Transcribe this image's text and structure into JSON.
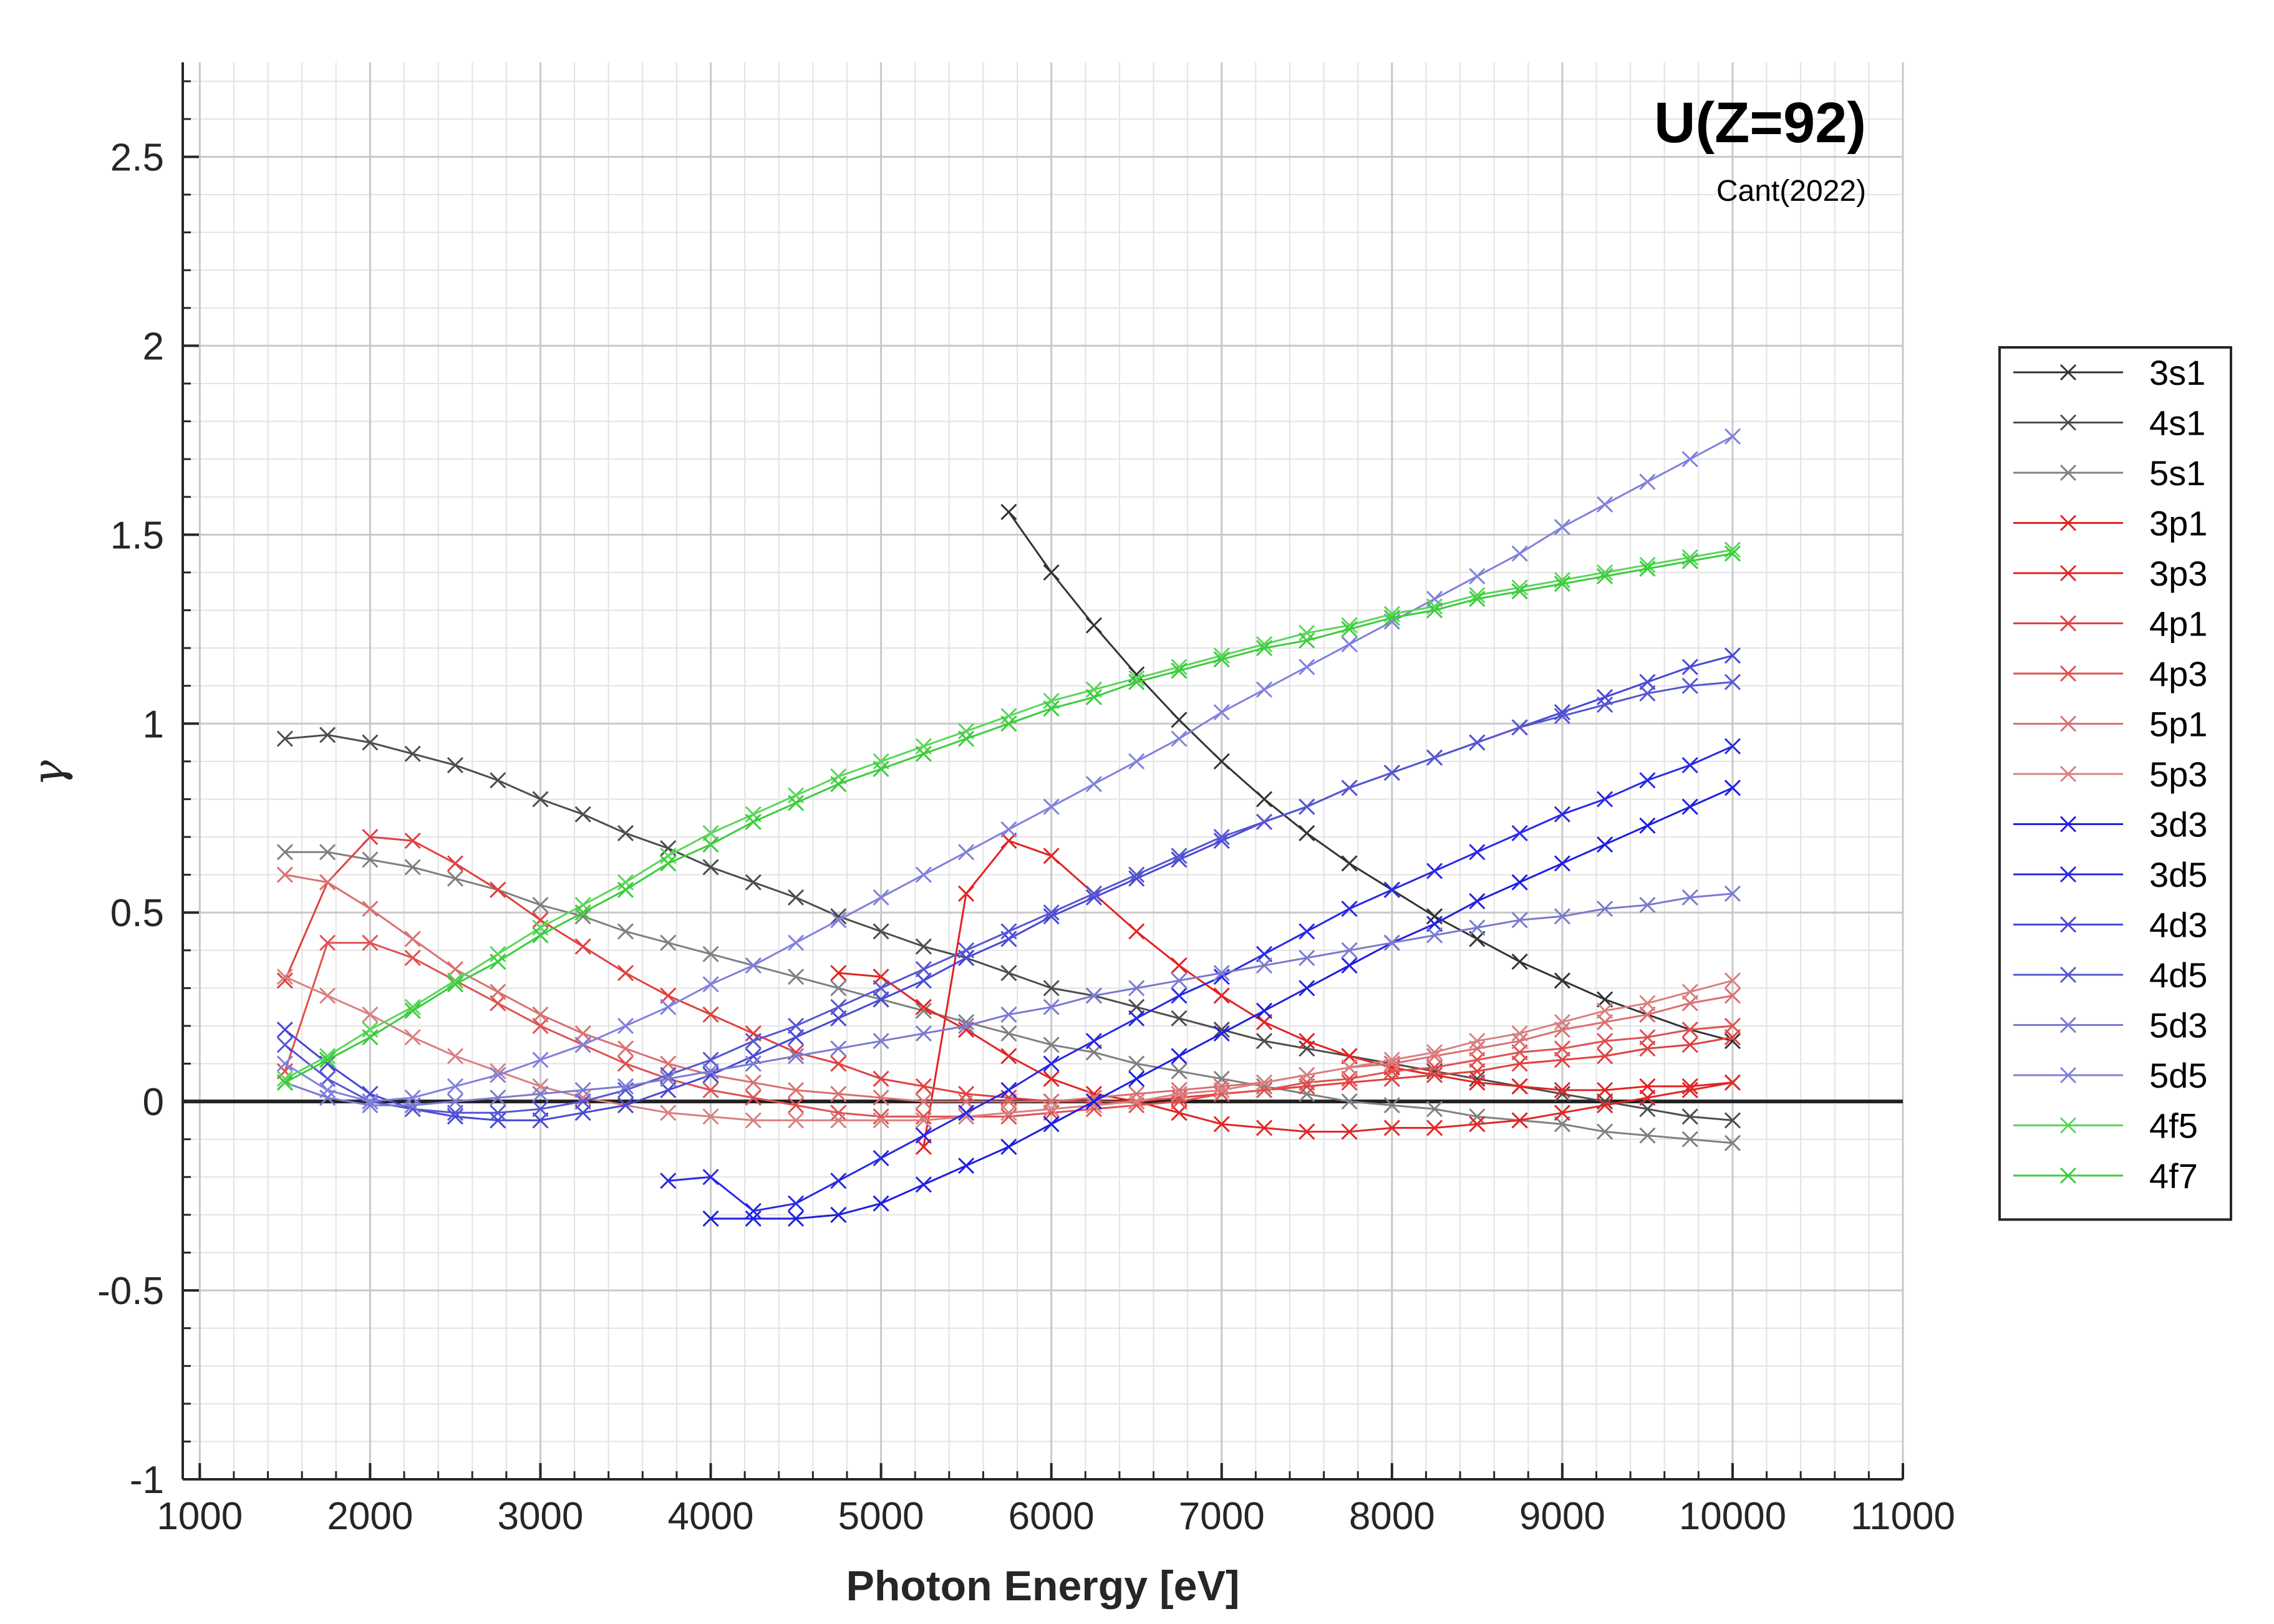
{
  "chart_data": {
    "type": "line",
    "title": "U(Z=92)",
    "subtitle": "Cant(2022)",
    "xlabel": "Photon Energy [eV]",
    "ylabel": "γ",
    "xlim": [
      900,
      11000
    ],
    "ylim": [
      -1,
      2.75
    ],
    "xticks": [
      1000,
      2000,
      3000,
      4000,
      5000,
      6000,
      7000,
      8000,
      9000,
      10000,
      11000
    ],
    "xtick_labels": [
      "1000",
      "2000",
      "3000",
      "4000",
      "5000",
      "6000",
      "7000",
      "8000",
      "9000",
      "10000",
      "11000"
    ],
    "yticks": [
      -1,
      -0.5,
      0,
      0.5,
      1,
      1.5,
      2,
      2.5
    ],
    "ytick_labels": [
      "-1",
      "-0.5",
      "0",
      "0.5",
      "1",
      "1.5",
      "2",
      "2.5"
    ],
    "grid": true,
    "minor_grid": true,
    "zero_line": true,
    "legend_position": "outside-right",
    "marker": "x",
    "series": [
      {
        "name": "3s1",
        "color": "#333333",
        "x": [
          5750,
          6000,
          6250,
          6500,
          6750,
          7000,
          7250,
          7500,
          7750,
          8000,
          8250,
          8500,
          8750,
          9000,
          9250,
          9500,
          9750,
          10000
        ],
        "y": [
          1.56,
          1.4,
          1.26,
          1.13,
          1.01,
          0.9,
          0.8,
          0.71,
          0.63,
          0.56,
          0.49,
          0.43,
          0.37,
          0.32,
          0.27,
          0.23,
          0.19,
          0.16
        ]
      },
      {
        "name": "4s1",
        "color": "#4d4d4d",
        "x": [
          1500,
          1750,
          2000,
          2250,
          2500,
          2750,
          3000,
          3250,
          3500,
          3750,
          4000,
          4250,
          4500,
          4750,
          5000,
          5250,
          5500,
          5750,
          6000,
          6250,
          6500,
          6750,
          7000,
          7250,
          7500,
          7750,
          8000,
          8250,
          8500,
          8750,
          9000,
          9250,
          9500,
          9750,
          10000
        ],
        "y": [
          0.96,
          0.97,
          0.95,
          0.92,
          0.89,
          0.85,
          0.8,
          0.76,
          0.71,
          0.67,
          0.62,
          0.58,
          0.54,
          0.49,
          0.45,
          0.41,
          0.38,
          0.34,
          0.3,
          0.28,
          0.25,
          0.22,
          0.19,
          0.16,
          0.14,
          0.12,
          0.1,
          0.08,
          0.06,
          0.04,
          0.02,
          0.0,
          -0.02,
          -0.04,
          -0.05
        ]
      },
      {
        "name": "5s1",
        "color": "#808080",
        "x": [
          1500,
          1750,
          2000,
          2250,
          2500,
          2750,
          3000,
          3250,
          3500,
          3750,
          4000,
          4250,
          4500,
          4750,
          5000,
          5250,
          5500,
          5750,
          6000,
          6250,
          6500,
          6750,
          7000,
          7250,
          7500,
          7750,
          8000,
          8250,
          8500,
          8750,
          9000,
          9250,
          9500,
          9750,
          10000
        ],
        "y": [
          0.66,
          0.66,
          0.64,
          0.62,
          0.59,
          0.56,
          0.52,
          0.49,
          0.45,
          0.42,
          0.39,
          0.36,
          0.33,
          0.3,
          0.27,
          0.24,
          0.21,
          0.18,
          0.15,
          0.13,
          0.1,
          0.08,
          0.06,
          0.04,
          0.02,
          0.0,
          -0.01,
          -0.02,
          -0.04,
          -0.05,
          -0.06,
          -0.08,
          -0.09,
          -0.1,
          -0.11
        ]
      },
      {
        "name": "3p1",
        "color": "#e32222",
        "x": [
          5250,
          5500,
          5750,
          6000,
          6250,
          6500,
          6750,
          7000,
          7250,
          7500,
          7750,
          8000,
          8250,
          8500,
          8750,
          9000,
          9250,
          9500,
          9750,
          10000
        ],
        "y": [
          -0.12,
          0.55,
          0.69,
          0.65,
          0.55,
          0.45,
          0.36,
          0.28,
          0.21,
          0.16,
          0.12,
          0.09,
          0.07,
          0.05,
          0.04,
          0.03,
          0.03,
          0.04,
          0.04,
          0.05
        ]
      },
      {
        "name": "3p3",
        "color": "#e02626",
        "x": [
          4750,
          5000,
          5250,
          5500,
          5750,
          6000,
          6250,
          6500,
          6750,
          7000,
          7250,
          7500,
          7750,
          8000,
          8250,
          8500,
          8750,
          9000,
          9250,
          9500,
          9750,
          10000
        ],
        "y": [
          0.34,
          0.33,
          0.25,
          0.19,
          0.12,
          0.06,
          0.02,
          0.0,
          -0.03,
          -0.06,
          -0.07,
          -0.08,
          -0.08,
          -0.07,
          -0.07,
          -0.06,
          -0.05,
          -0.03,
          -0.01,
          0.01,
          0.03,
          0.05
        ]
      },
      {
        "name": "4p1",
        "color": "#e04040",
        "x": [
          1500,
          1750,
          2000,
          2250,
          2500,
          2750,
          3000,
          3250,
          3500,
          3750,
          4000,
          4250,
          4500,
          4750,
          5000,
          5250,
          5500,
          5750,
          6000,
          6250,
          6500,
          6750,
          7000,
          7250,
          7500,
          7750,
          8000,
          8250,
          8500,
          8750,
          9000,
          9250,
          9500,
          9750,
          10000
        ],
        "y": [
          0.32,
          0.58,
          0.7,
          0.69,
          0.63,
          0.56,
          0.48,
          0.41,
          0.34,
          0.28,
          0.23,
          0.18,
          0.13,
          0.1,
          0.06,
          0.04,
          0.02,
          0.01,
          0.0,
          0.0,
          0.0,
          0.01,
          0.02,
          0.03,
          0.04,
          0.05,
          0.06,
          0.07,
          0.08,
          0.1,
          0.11,
          0.12,
          0.14,
          0.15,
          0.17
        ]
      },
      {
        "name": "4p3",
        "color": "#e05050",
        "x": [
          1500,
          1750,
          2000,
          2250,
          2500,
          2750,
          3000,
          3250,
          3500,
          3750,
          4000,
          4250,
          4500,
          4750,
          5000,
          5250,
          5500,
          5750,
          6000,
          6250,
          6500,
          6750,
          7000,
          7250,
          7500,
          7750,
          8000,
          8250,
          8500,
          8750,
          9000,
          9250,
          9500,
          9750,
          10000
        ],
        "y": [
          0.08,
          0.42,
          0.42,
          0.38,
          0.32,
          0.26,
          0.2,
          0.15,
          0.1,
          0.06,
          0.03,
          0.01,
          -0.01,
          -0.03,
          -0.04,
          -0.04,
          -0.04,
          -0.04,
          -0.03,
          -0.02,
          -0.01,
          0.0,
          0.02,
          0.03,
          0.05,
          0.06,
          0.08,
          0.09,
          0.11,
          0.13,
          0.14,
          0.16,
          0.17,
          0.19,
          0.2
        ]
      },
      {
        "name": "5p1",
        "color": "#d97070",
        "x": [
          1500,
          1750,
          2000,
          2250,
          2500,
          2750,
          3000,
          3250,
          3500,
          3750,
          4000,
          4250,
          4500,
          4750,
          5000,
          5250,
          5500,
          5750,
          6000,
          6250,
          6500,
          6750,
          7000,
          7250,
          7500,
          7750,
          8000,
          8250,
          8500,
          8750,
          9000,
          9250,
          9500,
          9750,
          10000
        ],
        "y": [
          0.6,
          0.58,
          0.51,
          0.43,
          0.35,
          0.29,
          0.23,
          0.18,
          0.14,
          0.1,
          0.07,
          0.05,
          0.03,
          0.02,
          0.01,
          0.0,
          0.0,
          0.0,
          0.0,
          0.01,
          0.02,
          0.03,
          0.04,
          0.05,
          0.07,
          0.09,
          0.1,
          0.12,
          0.14,
          0.16,
          0.19,
          0.21,
          0.23,
          0.26,
          0.28
        ]
      },
      {
        "name": "5p3",
        "color": "#d98080",
        "x": [
          1500,
          1750,
          2000,
          2250,
          2500,
          2750,
          3000,
          3250,
          3500,
          3750,
          4000,
          4250,
          4500,
          4750,
          5000,
          5250,
          5500,
          5750,
          6000,
          6250,
          6500,
          6750,
          7000,
          7250,
          7500,
          7750,
          8000,
          8250,
          8500,
          8750,
          9000,
          9250,
          9500,
          9750,
          10000
        ],
        "y": [
          0.33,
          0.28,
          0.23,
          0.17,
          0.12,
          0.08,
          0.04,
          0.01,
          -0.01,
          -0.03,
          -0.04,
          -0.05,
          -0.05,
          -0.05,
          -0.05,
          -0.05,
          -0.04,
          -0.03,
          -0.02,
          -0.01,
          0.0,
          0.02,
          0.03,
          0.05,
          0.07,
          0.09,
          0.11,
          0.13,
          0.16,
          0.18,
          0.21,
          0.24,
          0.26,
          0.29,
          0.32
        ]
      },
      {
        "name": "3d3",
        "color": "#1f1fe0",
        "x": [
          4000,
          4250,
          4500,
          4750,
          5000,
          5250,
          5500,
          5750,
          6000,
          6250,
          6500,
          6750,
          7000,
          7250,
          7500,
          7750,
          8000,
          8250,
          8500,
          8750,
          9000,
          9250,
          9500,
          9750,
          10000
        ],
        "y": [
          -0.31,
          -0.31,
          -0.31,
          -0.3,
          -0.27,
          -0.22,
          -0.17,
          -0.12,
          -0.06,
          0.0,
          0.06,
          0.12,
          0.18,
          0.24,
          0.3,
          0.36,
          0.42,
          0.47,
          0.53,
          0.58,
          0.63,
          0.68,
          0.73,
          0.78,
          0.83
        ]
      },
      {
        "name": "3d5",
        "color": "#2828e6",
        "x": [
          3750,
          4000,
          4250,
          4500,
          4750,
          5000,
          5250,
          5500,
          5750,
          6000,
          6250,
          6500,
          6750,
          7000,
          7250,
          7500,
          7750,
          8000,
          8250,
          8500,
          8750,
          9000,
          9250,
          9500,
          9750,
          10000
        ],
        "y": [
          -0.21,
          -0.2,
          -0.29,
          -0.27,
          -0.21,
          -0.15,
          -0.09,
          -0.03,
          0.03,
          0.1,
          0.16,
          0.22,
          0.28,
          0.33,
          0.39,
          0.45,
          0.51,
          0.56,
          0.61,
          0.66,
          0.71,
          0.76,
          0.8,
          0.85,
          0.89,
          0.94
        ]
      },
      {
        "name": "4d3",
        "color": "#4848d6",
        "x": [
          1500,
          1750,
          2000,
          2250,
          2500,
          2750,
          3000,
          3250,
          3500,
          3750,
          4000,
          4250,
          4500,
          4750,
          5000,
          5250,
          5500,
          5750,
          6000,
          6250,
          6500,
          6750,
          7000,
          7250,
          7500,
          7750,
          8000,
          8250,
          8500,
          8750,
          9000,
          9250,
          9500,
          9750,
          10000
        ],
        "y": [
          0.19,
          0.1,
          0.02,
          -0.02,
          -0.04,
          -0.05,
          -0.05,
          -0.03,
          -0.01,
          0.03,
          0.07,
          0.12,
          0.17,
          0.22,
          0.27,
          0.32,
          0.38,
          0.43,
          0.49,
          0.54,
          0.59,
          0.64,
          0.69,
          0.74,
          0.78,
          0.83,
          0.87,
          0.91,
          0.95,
          0.99,
          1.03,
          1.07,
          1.11,
          1.15,
          1.18
        ]
      },
      {
        "name": "4d5",
        "color": "#5656d0",
        "x": [
          1500,
          1750,
          2000,
          2250,
          2500,
          2750,
          3000,
          3250,
          3500,
          3750,
          4000,
          4250,
          4500,
          4750,
          5000,
          5250,
          5500,
          5750,
          6000,
          6250,
          6500,
          6750,
          7000,
          7250,
          7500,
          7750,
          8000,
          8250,
          8500,
          8750,
          9000,
          9250,
          9500,
          9750,
          10000
        ],
        "y": [
          0.15,
          0.06,
          0.0,
          -0.02,
          -0.03,
          -0.03,
          -0.02,
          0.0,
          0.03,
          0.07,
          0.11,
          0.16,
          0.2,
          0.25,
          0.3,
          0.35,
          0.4,
          0.45,
          0.5,
          0.55,
          0.6,
          0.65,
          0.7,
          0.74,
          0.78,
          0.83,
          0.87,
          0.91,
          0.95,
          0.99,
          1.02,
          1.05,
          1.08,
          1.1,
          1.11
        ]
      },
      {
        "name": "5d3",
        "color": "#7a7ad0",
        "x": [
          1500,
          1750,
          2000,
          2250,
          2500,
          2750,
          3000,
          3250,
          3500,
          3750,
          4000,
          4250,
          4500,
          4750,
          5000,
          5250,
          5500,
          5750,
          6000,
          6250,
          6500,
          6750,
          7000,
          7250,
          7500,
          7750,
          8000,
          8250,
          8500,
          8750,
          9000,
          9250,
          9500,
          9750,
          10000
        ],
        "y": [
          0.05,
          0.01,
          -0.01,
          -0.01,
          0.0,
          0.01,
          0.02,
          0.03,
          0.04,
          0.06,
          0.08,
          0.1,
          0.12,
          0.14,
          0.16,
          0.18,
          0.2,
          0.23,
          0.25,
          0.28,
          0.3,
          0.32,
          0.34,
          0.36,
          0.38,
          0.4,
          0.42,
          0.44,
          0.46,
          0.48,
          0.49,
          0.51,
          0.52,
          0.54,
          0.55
        ]
      },
      {
        "name": "5d5",
        "color": "#8080dc",
        "x": [
          1500,
          1750,
          2000,
          2250,
          2500,
          2750,
          3000,
          3250,
          3500,
          3750,
          4000,
          4250,
          4500,
          4750,
          5000,
          5250,
          5500,
          5750,
          6000,
          6250,
          6500,
          6750,
          7000,
          7250,
          7500,
          7750,
          8000,
          8250,
          8500,
          8750,
          9000,
          9250,
          9500,
          9750,
          10000
        ],
        "y": [
          0.1,
          0.03,
          0.0,
          0.01,
          0.04,
          0.07,
          0.11,
          0.15,
          0.2,
          0.25,
          0.31,
          0.36,
          0.42,
          0.48,
          0.54,
          0.6,
          0.66,
          0.72,
          0.78,
          0.84,
          0.9,
          0.96,
          1.03,
          1.09,
          1.15,
          1.21,
          1.27,
          1.33,
          1.39,
          1.45,
          1.52,
          1.58,
          1.64,
          1.7,
          1.76
        ]
      },
      {
        "name": "4f5",
        "color": "#5ad65a",
        "x": [
          1500,
          1750,
          2000,
          2250,
          2500,
          2750,
          3000,
          3250,
          3500,
          3750,
          4000,
          4250,
          4500,
          4750,
          5000,
          5250,
          5500,
          5750,
          6000,
          6250,
          6500,
          6750,
          7000,
          7250,
          7500,
          7750,
          8000,
          8250,
          8500,
          8750,
          9000,
          9250,
          9500,
          9750,
          10000
        ],
        "y": [
          0.06,
          0.12,
          0.19,
          0.25,
          0.32,
          0.39,
          0.46,
          0.52,
          0.58,
          0.65,
          0.71,
          0.76,
          0.81,
          0.86,
          0.9,
          0.94,
          0.98,
          1.02,
          1.06,
          1.09,
          1.12,
          1.15,
          1.18,
          1.21,
          1.24,
          1.26,
          1.29,
          1.31,
          1.34,
          1.36,
          1.38,
          1.4,
          1.42,
          1.44,
          1.46
        ]
      },
      {
        "name": "4f7",
        "color": "#3ccc3c",
        "x": [
          1500,
          1750,
          2000,
          2250,
          2500,
          2750,
          3000,
          3250,
          3500,
          3750,
          4000,
          4250,
          4500,
          4750,
          5000,
          5250,
          5500,
          5750,
          6000,
          6250,
          6500,
          6750,
          7000,
          7250,
          7500,
          7750,
          8000,
          8250,
          8500,
          8750,
          9000,
          9250,
          9500,
          9750,
          10000
        ],
        "y": [
          0.05,
          0.11,
          0.17,
          0.24,
          0.31,
          0.37,
          0.44,
          0.5,
          0.56,
          0.63,
          0.68,
          0.74,
          0.79,
          0.84,
          0.88,
          0.92,
          0.96,
          1.0,
          1.04,
          1.07,
          1.11,
          1.14,
          1.17,
          1.2,
          1.22,
          1.25,
          1.28,
          1.3,
          1.33,
          1.35,
          1.37,
          1.39,
          1.41,
          1.43,
          1.45
        ]
      }
    ]
  }
}
